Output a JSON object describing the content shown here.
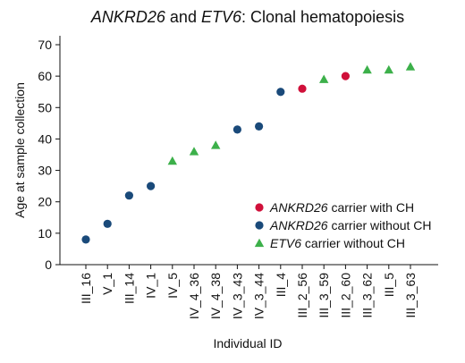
{
  "chart_data": {
    "type": "scatter",
    "title_parts": [
      {
        "text": "ANKRD26",
        "italic": true
      },
      {
        "text": " and ",
        "italic": false
      },
      {
        "text": "ETV6",
        "italic": true
      },
      {
        "text": ": Clonal hematopoiesis",
        "italic": false
      }
    ],
    "xlabel": "Individual ID",
    "ylabel": "Age at sample collection",
    "ylim": [
      0,
      70
    ],
    "yticks": [
      0,
      10,
      20,
      30,
      40,
      50,
      60,
      70
    ],
    "categories": [
      "III_16",
      "V_1",
      "III_14",
      "IV_1",
      "IV_5",
      "IV_4_36",
      "IV_4_38",
      "IV_3_43",
      "IV_3_44",
      "III_4",
      "III_2_56",
      "III_3_59",
      "III_2_60",
      "III_3_62",
      "III_5",
      "III_3_63"
    ],
    "series": [
      {
        "name_parts": [
          {
            "text": "ANKRD26",
            "italic": true
          },
          {
            "text": " carrier with CH",
            "italic": false
          }
        ],
        "marker": "circle",
        "color": "#d0103a",
        "points": [
          {
            "x": "III_2_56",
            "y": 56
          },
          {
            "x": "III_2_60",
            "y": 60
          }
        ]
      },
      {
        "name_parts": [
          {
            "text": "ANKRD26",
            "italic": true
          },
          {
            "text": " carrier without CH",
            "italic": false
          }
        ],
        "marker": "circle",
        "color": "#1a4a7a",
        "points": [
          {
            "x": "III_16",
            "y": 8
          },
          {
            "x": "V_1",
            "y": 13
          },
          {
            "x": "III_14",
            "y": 22
          },
          {
            "x": "IV_1",
            "y": 25
          },
          {
            "x": "IV_3_43",
            "y": 43
          },
          {
            "x": "IV_3_44",
            "y": 44
          },
          {
            "x": "III_4",
            "y": 55
          }
        ]
      },
      {
        "name_parts": [
          {
            "text": "ETV6",
            "italic": true
          },
          {
            "text": " carrier without CH",
            "italic": false
          }
        ],
        "marker": "triangle",
        "color": "#3cb04a",
        "points": [
          {
            "x": "IV_5",
            "y": 33
          },
          {
            "x": "IV_4_36",
            "y": 36
          },
          {
            "x": "IV_4_38",
            "y": 38
          },
          {
            "x": "III_3_59",
            "y": 59
          },
          {
            "x": "III_3_62",
            "y": 62
          },
          {
            "x": "III_5",
            "y": 62
          },
          {
            "x": "III_3_63",
            "y": 63
          }
        ]
      }
    ],
    "legend_position": "right",
    "grid": false
  }
}
